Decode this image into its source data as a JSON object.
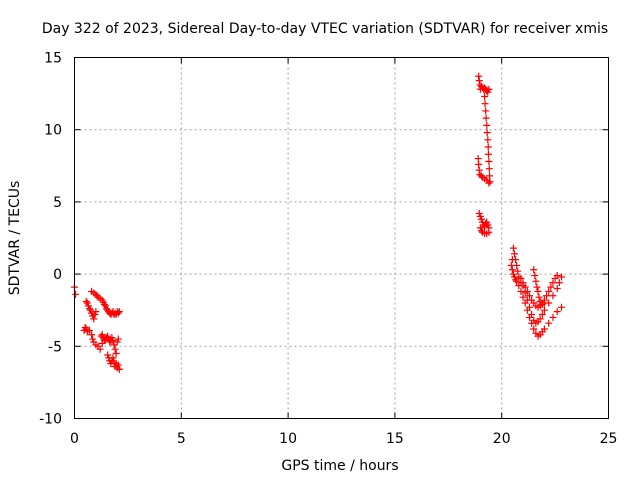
{
  "chart_data": {
    "type": "scatter",
    "title": "Day 322 of 2023, Sidereal Day-to-day VTEC variation (SDTVAR) for receiver xmis",
    "xlabel": "GPS time / hours",
    "ylabel": "SDTVAR / TECUs",
    "xlim": [
      0,
      25
    ],
    "ylim": [
      -10,
      15
    ],
    "xticks": [
      0,
      5,
      10,
      15,
      20,
      25
    ],
    "yticks": [
      -10,
      -5,
      0,
      5,
      10,
      15
    ],
    "xtick_labels": [
      "0",
      "5",
      "10",
      "15",
      "20",
      "25"
    ],
    "ytick_labels": [
      "-10",
      "-5",
      "0",
      "5",
      "10",
      "15"
    ],
    "grid": true,
    "marker": "plus",
    "color": "#ff0000",
    "series": [
      {
        "points": [
          [
            0.0,
            -0.9
          ],
          [
            0.05,
            -1.4
          ],
          [
            0.45,
            -3.9
          ],
          [
            0.5,
            -3.7
          ],
          [
            0.55,
            -3.8
          ],
          [
            0.6,
            -4.0
          ],
          [
            0.7,
            -3.9
          ],
          [
            0.8,
            -4.2
          ],
          [
            0.85,
            -4.5
          ],
          [
            0.9,
            -4.7
          ],
          [
            1.0,
            -4.9
          ],
          [
            1.1,
            -5.0
          ],
          [
            1.2,
            -5.2
          ],
          [
            1.3,
            -4.8
          ],
          [
            0.55,
            -1.9
          ],
          [
            0.6,
            -2.0
          ],
          [
            0.65,
            -2.2
          ],
          [
            0.7,
            -2.4
          ],
          [
            0.75,
            -2.5
          ],
          [
            0.8,
            -2.7
          ],
          [
            0.85,
            -2.9
          ],
          [
            0.9,
            -3.1
          ],
          [
            0.95,
            -2.8
          ],
          [
            1.0,
            -2.6
          ],
          [
            0.8,
            -1.2
          ],
          [
            0.9,
            -1.3
          ],
          [
            1.0,
            -1.4
          ],
          [
            1.05,
            -1.5
          ],
          [
            1.1,
            -1.6
          ],
          [
            1.2,
            -1.7
          ],
          [
            1.3,
            -1.8
          ],
          [
            1.35,
            -1.95
          ],
          [
            1.4,
            -2.1
          ],
          [
            1.45,
            -2.2
          ],
          [
            1.5,
            -2.4
          ],
          [
            1.55,
            -2.5
          ],
          [
            1.25,
            -4.3
          ],
          [
            1.3,
            -4.2
          ],
          [
            1.35,
            -4.4
          ],
          [
            1.4,
            -4.6
          ],
          [
            1.45,
            -4.5
          ],
          [
            1.5,
            -4.4
          ],
          [
            1.55,
            -4.3
          ],
          [
            1.6,
            -4.5
          ],
          [
            1.65,
            -4.7
          ],
          [
            1.7,
            -4.6
          ],
          [
            1.75,
            -4.4
          ],
          [
            1.6,
            -2.6
          ],
          [
            1.65,
            -2.7
          ],
          [
            1.7,
            -2.8
          ],
          [
            1.75,
            -2.7
          ],
          [
            1.8,
            -2.6
          ],
          [
            1.85,
            -2.8
          ],
          [
            1.9,
            -2.7
          ],
          [
            1.95,
            -2.8
          ],
          [
            2.0,
            -2.6
          ],
          [
            2.05,
            -2.7
          ],
          [
            2.1,
            -2.6
          ],
          [
            1.55,
            -5.6
          ],
          [
            1.6,
            -5.8
          ],
          [
            1.65,
            -6.0
          ],
          [
            1.7,
            -6.2
          ],
          [
            1.75,
            -6.0
          ],
          [
            1.8,
            -5.8
          ],
          [
            1.85,
            -6.1
          ],
          [
            1.9,
            -6.4
          ],
          [
            1.95,
            -6.2
          ],
          [
            2.0,
            -6.5
          ],
          [
            2.05,
            -6.3
          ],
          [
            2.1,
            -6.6
          ],
          [
            1.8,
            -4.6
          ],
          [
            1.85,
            -4.9
          ],
          [
            1.9,
            -5.2
          ],
          [
            1.95,
            -5.5
          ],
          [
            2.0,
            -4.7
          ],
          [
            2.05,
            -4.5
          ],
          [
            18.92,
            13.7
          ],
          [
            18.95,
            13.4
          ],
          [
            18.98,
            13.1
          ],
          [
            19.0,
            12.8
          ],
          [
            19.05,
            13.0
          ],
          [
            19.1,
            12.9
          ],
          [
            19.15,
            12.8
          ],
          [
            19.2,
            12.9
          ],
          [
            19.25,
            12.8
          ],
          [
            19.3,
            12.7
          ],
          [
            19.35,
            12.6
          ],
          [
            19.4,
            12.8
          ],
          [
            19.2,
            12.3
          ],
          [
            19.22,
            11.8
          ],
          [
            19.25,
            11.3
          ],
          [
            19.27,
            10.8
          ],
          [
            19.3,
            10.3
          ],
          [
            19.32,
            9.8
          ],
          [
            19.35,
            9.3
          ],
          [
            19.37,
            8.8
          ],
          [
            19.38,
            8.3
          ],
          [
            19.4,
            7.8
          ],
          [
            19.42,
            7.3
          ],
          [
            19.43,
            6.8
          ],
          [
            19.45,
            6.4
          ],
          [
            18.9,
            8.0
          ],
          [
            18.92,
            7.6
          ],
          [
            18.95,
            7.2
          ],
          [
            18.98,
            6.9
          ],
          [
            19.05,
            6.8
          ],
          [
            19.1,
            6.7
          ],
          [
            19.2,
            6.6
          ],
          [
            19.3,
            6.5
          ],
          [
            19.4,
            6.3
          ],
          [
            18.95,
            4.2
          ],
          [
            19.0,
            4.0
          ],
          [
            19.05,
            3.8
          ],
          [
            19.1,
            3.6
          ],
          [
            19.15,
            3.4
          ],
          [
            19.2,
            3.3
          ],
          [
            19.25,
            3.5
          ],
          [
            19.3,
            3.6
          ],
          [
            19.35,
            3.4
          ],
          [
            19.4,
            3.2
          ],
          [
            19.0,
            3.2
          ],
          [
            19.05,
            3.0
          ],
          [
            19.1,
            2.9
          ],
          [
            19.2,
            2.8
          ],
          [
            19.3,
            2.8
          ],
          [
            19.4,
            2.9
          ],
          [
            20.45,
            0.6
          ],
          [
            20.5,
            1.0
          ],
          [
            20.55,
            1.8
          ],
          [
            20.6,
            1.4
          ],
          [
            20.65,
            1.0
          ],
          [
            20.7,
            0.6
          ],
          [
            20.75,
            0.2
          ],
          [
            20.8,
            -0.2
          ],
          [
            20.9,
            -0.6
          ],
          [
            20.5,
            0.3
          ],
          [
            20.55,
            0.0
          ],
          [
            20.6,
            -0.2
          ],
          [
            20.65,
            -0.4
          ],
          [
            20.7,
            -0.5
          ],
          [
            20.8,
            -0.8
          ],
          [
            20.9,
            -1.2
          ],
          [
            21.0,
            -1.6
          ],
          [
            21.1,
            -2.0
          ],
          [
            21.2,
            -2.5
          ],
          [
            21.3,
            -3.0
          ],
          [
            21.4,
            -3.4
          ],
          [
            21.5,
            -3.8
          ],
          [
            21.6,
            -4.1
          ],
          [
            21.7,
            -4.3
          ],
          [
            21.8,
            -4.2
          ],
          [
            21.9,
            -4.0
          ],
          [
            22.0,
            -3.8
          ],
          [
            22.2,
            -3.4
          ],
          [
            22.4,
            -3.0
          ],
          [
            22.6,
            -2.6
          ],
          [
            22.8,
            -2.3
          ],
          [
            20.9,
            -0.3
          ],
          [
            21.0,
            -0.6
          ],
          [
            21.1,
            -0.9
          ],
          [
            21.2,
            -1.2
          ],
          [
            21.3,
            -1.5
          ],
          [
            21.4,
            -1.8
          ],
          [
            21.5,
            -2.0
          ],
          [
            21.6,
            -2.2
          ],
          [
            21.7,
            -2.3
          ],
          [
            21.8,
            -2.2
          ],
          [
            21.9,
            -2.0
          ],
          [
            22.0,
            -1.8
          ],
          [
            22.1,
            -1.5
          ],
          [
            22.2,
            -1.2
          ],
          [
            22.3,
            -0.9
          ],
          [
            22.4,
            -0.6
          ],
          [
            22.5,
            -0.3
          ],
          [
            22.6,
            -0.1
          ],
          [
            21.0,
            -0.8
          ],
          [
            21.1,
            -1.3
          ],
          [
            21.2,
            -1.8
          ],
          [
            21.3,
            -2.3
          ],
          [
            21.4,
            -2.8
          ],
          [
            21.5,
            -3.2
          ],
          [
            21.6,
            -3.4
          ],
          [
            21.7,
            -3.3
          ],
          [
            21.8,
            -3.1
          ],
          [
            21.9,
            -2.8
          ],
          [
            22.0,
            -2.5
          ],
          [
            22.2,
            -2.0
          ],
          [
            22.4,
            -1.5
          ],
          [
            22.6,
            -1.0
          ],
          [
            22.7,
            -0.6
          ],
          [
            22.8,
            -0.2
          ],
          [
            21.5,
            0.3
          ],
          [
            21.55,
            -0.1
          ],
          [
            21.6,
            -0.5
          ],
          [
            21.65,
            -0.9
          ],
          [
            21.7,
            -1.2
          ],
          [
            21.75,
            -1.6
          ],
          [
            21.8,
            -1.9
          ],
          [
            21.9,
            -2.1
          ],
          [
            22.0,
            -2.0
          ]
        ]
      }
    ]
  }
}
